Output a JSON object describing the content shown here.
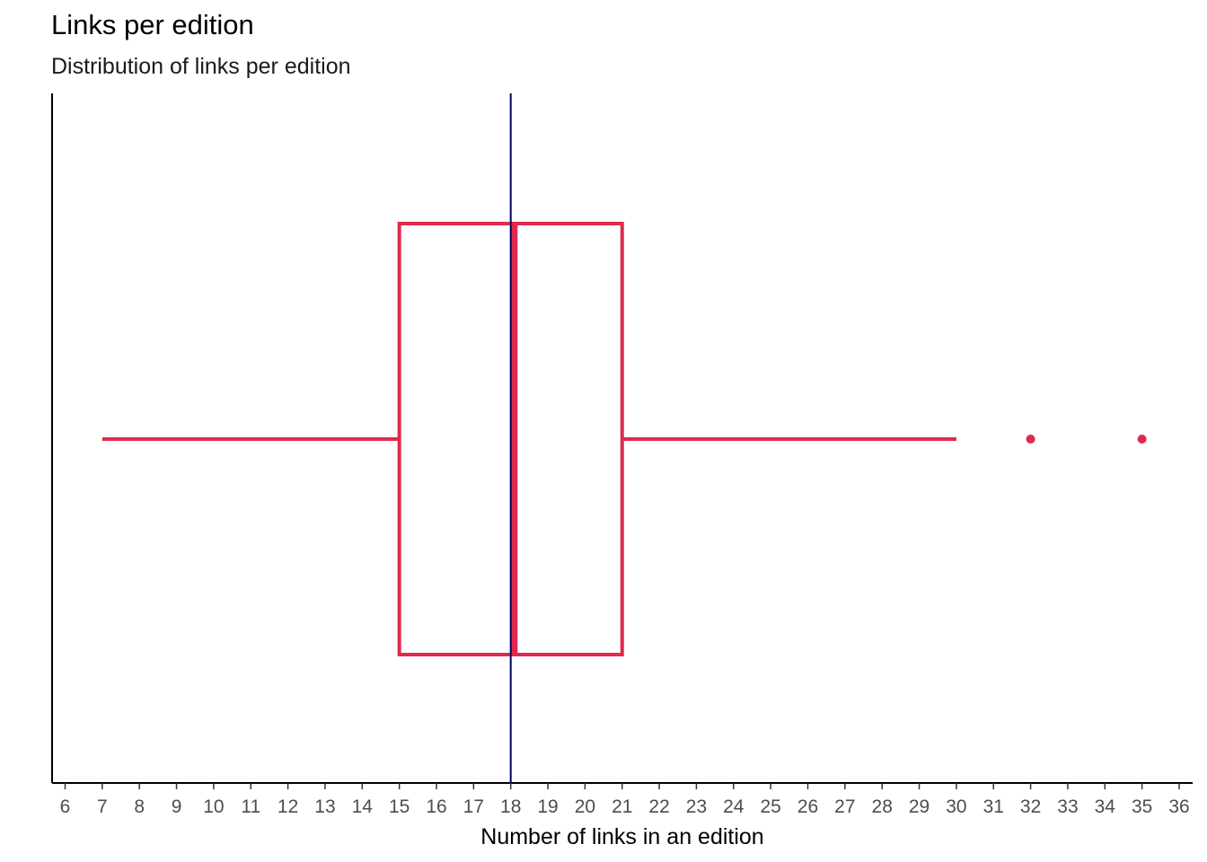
{
  "chart_data": {
    "type": "boxplot",
    "title": "Links per edition",
    "subtitle": "Distribution of links per edition",
    "xlabel": "Number of links in an edition",
    "ylabel": "",
    "xlim": [
      6,
      36
    ],
    "x_ticks": [
      6,
      7,
      8,
      9,
      10,
      11,
      12,
      13,
      14,
      15,
      16,
      17,
      18,
      19,
      20,
      21,
      22,
      23,
      24,
      25,
      26,
      27,
      28,
      29,
      30,
      31,
      32,
      33,
      34,
      35,
      36
    ],
    "box": {
      "whisker_low": 7,
      "q1": 15,
      "median": 18.1,
      "q3": 21,
      "whisker_high": 30,
      "outliers": [
        32,
        35
      ]
    },
    "reference_line": 18,
    "colors": {
      "box": "#e0294f",
      "reference_line": "#000066",
      "axis": "#000000"
    },
    "grid": false
  }
}
